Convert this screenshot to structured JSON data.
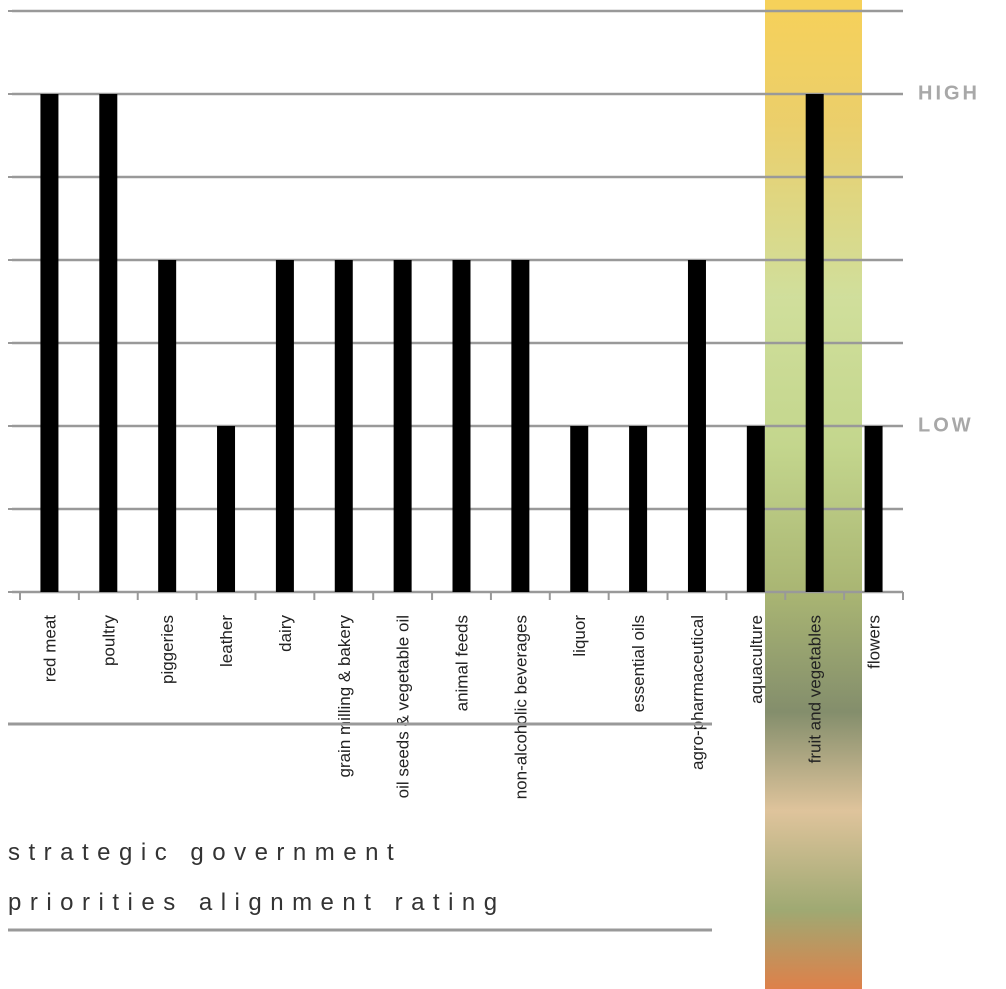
{
  "chart_data": {
    "type": "bar",
    "title": [
      "strategic government",
      "priorities alignment rating"
    ],
    "categories": [
      "red meat",
      "poultry",
      "piggeries",
      "leather",
      "dairy",
      "grain milling & bakery",
      "oil seeds & vegetable oil",
      "animal feeds",
      "non-alcoholic beverages",
      "liquor",
      "essential oils",
      "agro-pharmaceutical",
      "aquaculture",
      "fruit and vegetables",
      "flowers"
    ],
    "values": [
      6,
      6,
      4,
      2,
      4,
      4,
      4,
      4,
      4,
      2,
      2,
      4,
      2,
      6,
      2
    ],
    "color": "#000000",
    "ylim": [
      0,
      7
    ],
    "yticks": [
      0,
      1,
      2,
      3,
      4,
      5,
      6,
      7
    ],
    "grid": true,
    "annotations": [
      {
        "text": "HIGH",
        "y": 6
      },
      {
        "text": "LOW",
        "y": 2
      }
    ]
  }
}
